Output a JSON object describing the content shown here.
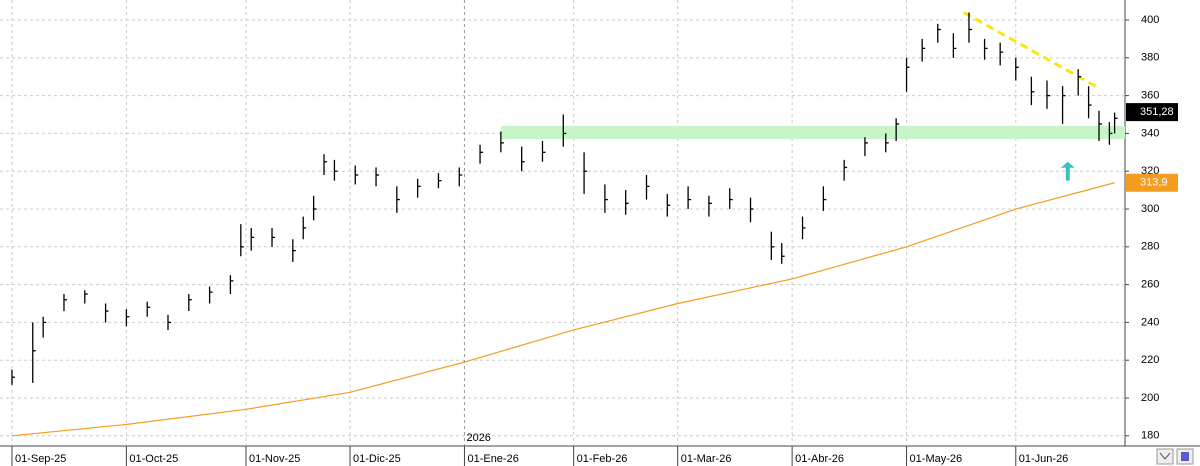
{
  "chart_data": {
    "type": "ohlc",
    "x": [
      0,
      4,
      6,
      10,
      14,
      18,
      22,
      26,
      30,
      34,
      38,
      42,
      44,
      46,
      50,
      54,
      56,
      58,
      60,
      62,
      66,
      70,
      74,
      78,
      82,
      86,
      90,
      94,
      98,
      102,
      106,
      110,
      114,
      118,
      122,
      126,
      130,
      134,
      138,
      142,
      146,
      148,
      152,
      156,
      160,
      164,
      168,
      170,
      172,
      175,
      178,
      181,
      184,
      187,
      190,
      193,
      196,
      199,
      202,
      205,
      207,
      209,
      211,
      212
    ],
    "close": [
      211,
      225,
      240,
      252,
      255,
      246,
      243,
      248,
      240,
      252,
      256,
      262,
      280,
      285,
      285,
      278,
      290,
      300,
      325,
      320,
      318,
      318,
      305,
      312,
      315,
      318,
      330,
      335,
      325,
      330,
      340,
      320,
      305,
      303,
      312,
      302,
      305,
      303,
      305,
      300,
      280,
      275,
      290,
      305,
      322,
      335,
      335,
      345,
      375,
      385,
      395,
      385,
      395,
      385,
      383,
      375,
      362,
      360,
      360,
      370,
      355,
      345,
      340,
      348
    ],
    "high": [
      215,
      240,
      243,
      255,
      257,
      250,
      247,
      251,
      244,
      255,
      259,
      265,
      292,
      290,
      290,
      284,
      296,
      307,
      329,
      326,
      323,
      322,
      312,
      316,
      319,
      322,
      334,
      341,
      333,
      336,
      350,
      330,
      313,
      310,
      318,
      308,
      312,
      307,
      311,
      306,
      288,
      282,
      296,
      312,
      326,
      338,
      340,
      348,
      380,
      390,
      398,
      393,
      404,
      390,
      388,
      380,
      370,
      368,
      365,
      374,
      365,
      352,
      346,
      351
    ],
    "low": [
      207,
      208,
      232,
      246,
      250,
      240,
      238,
      243,
      236,
      246,
      250,
      255,
      275,
      278,
      280,
      272,
      284,
      294,
      318,
      315,
      313,
      312,
      298,
      306,
      311,
      312,
      324,
      330,
      320,
      325,
      333,
      308,
      298,
      297,
      305,
      296,
      300,
      296,
      300,
      293,
      273,
      271,
      284,
      299,
      315,
      328,
      330,
      336,
      362,
      378,
      388,
      380,
      388,
      379,
      376,
      368,
      355,
      353,
      345,
      360,
      348,
      336,
      334,
      340
    ],
    "bar_color": "#000000",
    "moving_average": {
      "color": "#f59b1f",
      "x": [
        0,
        22,
        45,
        65,
        87,
        108,
        128,
        150,
        172,
        193,
        212
      ],
      "values": [
        180,
        186,
        194,
        203,
        219,
        236,
        250,
        263,
        280,
        300,
        313.9
      ]
    },
    "last_price": {
      "value": 351.28,
      "label": "351,28"
    },
    "ma_price": {
      "value": 313.9,
      "label": "313,9"
    },
    "support_band": {
      "x": [
        94,
        214
      ],
      "values": [
        337,
        344
      ],
      "color": "#c8f5c8"
    },
    "trendline": {
      "x": [
        183,
        209
      ],
      "values": [
        404,
        364
      ],
      "color": "#f7e617"
    },
    "arrow": {
      "x": 203,
      "values": [
        315,
        325
      ],
      "color": "#3cc0c0"
    },
    "year_marker": {
      "x": 87,
      "label": "2026"
    },
    "xlim": [
      -2.3,
      214
    ],
    "ylim": [
      174.6,
      410.6
    ],
    "xticks": [
      {
        "value": 0,
        "label": "01-Sep-25"
      },
      {
        "value": 22,
        "label": "01-Oct-25"
      },
      {
        "value": 45,
        "label": "01-Nov-25"
      },
      {
        "value": 65,
        "label": "01-Dic-25"
      },
      {
        "value": 87,
        "label": "01-Ene-26"
      },
      {
        "value": 108,
        "label": "01-Feb-26"
      },
      {
        "value": 128,
        "label": "01-Mar-26"
      },
      {
        "value": 150,
        "label": "01-Abr-26"
      },
      {
        "value": 172,
        "label": "01-May-26"
      },
      {
        "value": 193,
        "label": "01-Jun-26"
      }
    ],
    "yticks": [
      180,
      200,
      220,
      240,
      260,
      280,
      300,
      320,
      340,
      360,
      380,
      400
    ],
    "grid": true
  }
}
